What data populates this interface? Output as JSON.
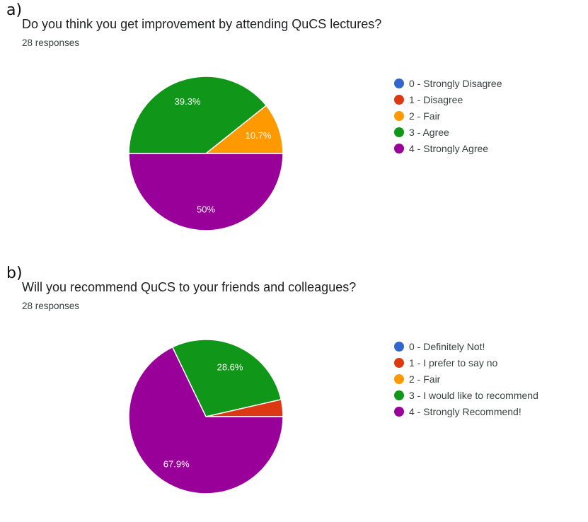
{
  "chart_data": [
    {
      "type": "pie",
      "panel_label": "a)",
      "title": "Do you think you get improvement by attending QuCS lectures?",
      "subtitle": "28 responses",
      "categories": [
        "0 - Strongly Disagree",
        "1 - Disagree",
        "2 - Fair",
        "3 - Agree",
        "4 - Strongly Agree"
      ],
      "values": [
        0,
        0,
        3,
        11,
        14
      ],
      "data_labels": [
        "",
        "",
        "10.7%",
        "39.3%",
        "50%"
      ],
      "colors": [
        "#3366cc",
        "#dc3912",
        "#ff9900",
        "#109618",
        "#990099"
      ],
      "legend": "right"
    },
    {
      "type": "pie",
      "panel_label": "b)",
      "title": "Will you recommend QuCS to your friends and colleagues?",
      "subtitle": "28 responses",
      "categories": [
        "0 - Definitely Not!",
        "1 - I prefer to say no",
        "2 - Fair",
        "3 - I would like to recommend",
        "4 - Strongly Recommend!"
      ],
      "values": [
        0,
        1,
        0,
        8,
        19
      ],
      "data_labels": [
        "",
        "",
        "",
        "28.6%",
        "67.9%"
      ],
      "colors": [
        "#3366cc",
        "#dc3912",
        "#ff9900",
        "#109618",
        "#990099"
      ],
      "legend": "right"
    }
  ]
}
